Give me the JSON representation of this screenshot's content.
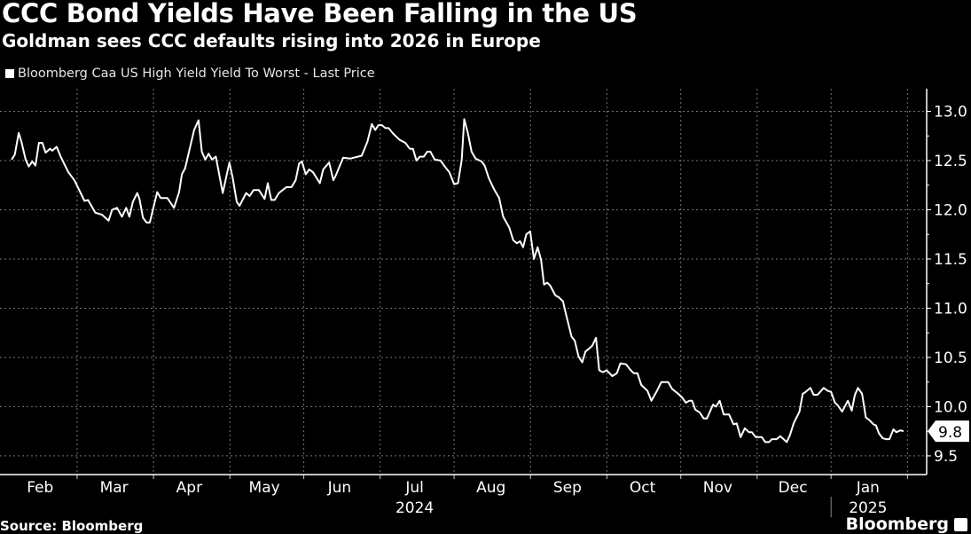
{
  "chart_data": {
    "type": "line",
    "title": "CCC Bond Yields Have Been Falling in the US",
    "subtitle": "Goldman sees CCC defaults rising into 2026 in Europe",
    "x_unit": "days since 2024-02-01",
    "xlim": [
      -2.3,
      373.8
    ],
    "ylim": [
      9.31,
      13.23
    ],
    "grid": true,
    "legend_position": "top-left",
    "xlabel": "",
    "ylabel": "",
    "y_ticks": [
      "13.0",
      "12.5",
      "12.0",
      "11.5",
      "11.0",
      "10.5",
      "10.0",
      "9.5"
    ],
    "x_ticks": [
      {
        "label": "Feb",
        "day": 14
      },
      {
        "label": "Mar",
        "day": 44
      },
      {
        "label": "Apr",
        "day": 74.5
      },
      {
        "label": "May",
        "day": 105
      },
      {
        "label": "Jun",
        "day": 135.5
      },
      {
        "label": "Jul",
        "day": 166
      },
      {
        "label": "Aug",
        "day": 197
      },
      {
        "label": "Sep",
        "day": 228
      },
      {
        "label": "Oct",
        "day": 258.5
      },
      {
        "label": "Nov",
        "day": 289
      },
      {
        "label": "Dec",
        "day": 319.5
      },
      {
        "label": "Jan",
        "day": 350
      }
    ],
    "year_labels": [
      {
        "label": "2024",
        "day": 166
      },
      {
        "label": "2025",
        "day": 350
      }
    ],
    "last_price_label": "9.8",
    "series": [
      {
        "name": "Bloomberg Caa US High Yield Yield To Worst - Last Price",
        "color": "#ffffff",
        "x": [
          2.4,
          3.7,
          5.3,
          6.4,
          8.1,
          9.4,
          10.8,
          12.1,
          13.5,
          14.9,
          16.2,
          18.0,
          18.9,
          20.7,
          22.5,
          25.5,
          27.9,
          32.0,
          33.4,
          36.4,
          39.1,
          41.8,
          43.2,
          45.2,
          47.2,
          48.9,
          50.2,
          51.6,
          53.4,
          54.3,
          55.7,
          57.2,
          58.5,
          61.5,
          62.9,
          65.6,
          68.3,
          70.4,
          71.5,
          72.8,
          76.5,
          78.3,
          79.6,
          81.0,
          82.4,
          83.7,
          85.3,
          88.1,
          90.8,
          92.1,
          93.8,
          94.9,
          97.6,
          99.0,
          100.6,
          102.8,
          105.1,
          106.4,
          107.8,
          109.2,
          110.9,
          113.9,
          116.0,
          117.7,
          119.1,
          120.2,
          121.8,
          123.2,
          124.8,
          127.5,
          128.9,
          131.3,
          133.0,
          134.0,
          137.0,
          139.8,
          144.5,
          146.8,
          148.6,
          150.0,
          151.3,
          152.7,
          154.1,
          155.4,
          157.4,
          159.9,
          162.2,
          164.0,
          165.3,
          166.7,
          168.1,
          169.7,
          171.1,
          172.4,
          174.1,
          176.5,
          177.9,
          180.1,
          182.0,
          183.6,
          185.1,
          186.1,
          187.6,
          189.1,
          190.7,
          193.2,
          194.4,
          196.1,
          198.2,
          200.3,
          201.9,
          204.4,
          206.0,
          207.5,
          208.8,
          210.0,
          211.3,
          212.9,
          214.4,
          215.9,
          217.3,
          218.5,
          219.8,
          221.0,
          223.1,
          224.6,
          226.2,
          227.5,
          229.7,
          231.0,
          232.5,
          234.0,
          235.3,
          236.8,
          238.1,
          239.6,
          240.9,
          242.4,
          243.9,
          246.2,
          248.1,
          249.5,
          251.8,
          253.7,
          254.9,
          256.4,
          258.0,
          260.5,
          262.1,
          264.3,
          266.1,
          268.9,
          270.5,
          273.0,
          274.6,
          276.1,
          277.4,
          278.6,
          279.9,
          281.7,
          283.3,
          284.6,
          287.1,
          288.3,
          289.8,
          291.4,
          293.6,
          295.4,
          296.7,
          298.3,
          300.0,
          301.7,
          302.9,
          304.4,
          306.9,
          308.3,
          309.8,
          311.0,
          312.9,
          314.4,
          317.0,
          318.3,
          319.8,
          322.2,
          323.5,
          324.7,
          326.6,
          327.9,
          329.5,
          332.0,
          333.7,
          335.0,
          336.6,
          337.8,
          339.5,
          341.8,
          343.4,
          344.7,
          345.9,
          347.6,
          349.1,
          350.7,
          352.2,
          353.2,
          354.4,
          355.9,
          357.2,
          358.7,
          360.3,
          361.5,
          363.1,
          364.4
        ],
        "values": [
          12.51,
          12.56,
          12.78,
          12.69,
          12.51,
          12.44,
          12.49,
          12.45,
          12.68,
          12.68,
          12.58,
          12.62,
          12.6,
          12.64,
          12.53,
          12.38,
          12.3,
          12.09,
          12.1,
          11.97,
          11.95,
          11.89,
          12.0,
          12.02,
          11.93,
          12.02,
          11.93,
          12.08,
          12.17,
          12.11,
          11.92,
          11.87,
          11.87,
          12.18,
          12.12,
          12.12,
          12.02,
          12.18,
          12.36,
          12.42,
          12.81,
          12.91,
          12.59,
          12.51,
          12.57,
          12.51,
          12.54,
          12.17,
          12.48,
          12.33,
          12.08,
          12.04,
          12.17,
          12.14,
          12.2,
          12.2,
          12.11,
          12.27,
          12.1,
          12.1,
          12.17,
          12.23,
          12.23,
          12.3,
          12.47,
          12.49,
          12.36,
          12.41,
          12.38,
          12.27,
          12.41,
          12.48,
          12.3,
          12.35,
          12.53,
          12.52,
          12.55,
          12.69,
          12.87,
          12.81,
          12.86,
          12.86,
          12.83,
          12.83,
          12.77,
          12.71,
          12.68,
          12.62,
          12.62,
          12.5,
          12.54,
          12.54,
          12.59,
          12.59,
          12.51,
          12.5,
          12.45,
          12.38,
          12.26,
          12.27,
          12.51,
          12.92,
          12.78,
          12.59,
          12.52,
          12.49,
          12.45,
          12.32,
          12.21,
          12.12,
          11.93,
          11.82,
          11.69,
          11.66,
          11.68,
          11.62,
          11.75,
          11.78,
          11.5,
          11.62,
          11.49,
          11.24,
          11.26,
          11.23,
          11.13,
          11.11,
          11.07,
          10.93,
          10.71,
          10.67,
          10.51,
          10.45,
          10.56,
          10.59,
          10.62,
          10.7,
          10.37,
          10.35,
          10.37,
          10.31,
          10.34,
          10.44,
          10.43,
          10.37,
          10.34,
          10.34,
          10.22,
          10.16,
          10.06,
          10.16,
          10.25,
          10.25,
          10.18,
          10.13,
          10.09,
          10.04,
          10.06,
          10.06,
          9.97,
          9.94,
          9.88,
          9.88,
          10.02,
          10.0,
          10.06,
          9.92,
          9.92,
          9.82,
          9.83,
          9.69,
          9.78,
          9.74,
          9.74,
          9.69,
          9.69,
          9.64,
          9.64,
          9.67,
          9.67,
          9.7,
          9.64,
          9.71,
          9.83,
          9.95,
          10.13,
          10.15,
          10.19,
          10.12,
          10.12,
          10.19,
          10.16,
          10.15,
          10.04,
          10.01,
          9.95,
          10.06,
          9.96,
          10.12,
          10.19,
          10.13,
          9.89,
          9.86,
          9.82,
          9.81,
          9.73,
          9.68,
          9.67,
          9.67,
          9.77,
          9.74,
          9.76,
          9.75
        ]
      }
    ],
    "source": "Source: Bloomberg",
    "brand": "Bloomberg"
  }
}
